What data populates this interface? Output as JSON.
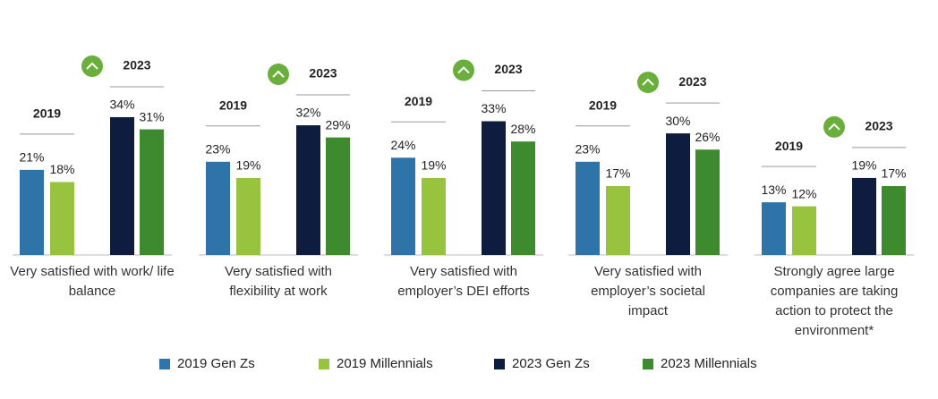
{
  "chart_data": {
    "type": "bar",
    "categories": [
      "Very satisfied with work/ life balance",
      "Very satisfied with flexibility at work",
      "Very satisfied with employer’s DEI efforts",
      "Very satisfied with employer’s societal impact",
      "Strongly agree large companies are taking action to protect the environment*"
    ],
    "period_labels": [
      "2019",
      "2023"
    ],
    "series": [
      {
        "name": "2019 Gen Zs",
        "color": "#2f74a9",
        "values": [
          21,
          23,
          24,
          23,
          13
        ],
        "value_labels": [
          "21%",
          "23%",
          "24%",
          "23%",
          "13%"
        ]
      },
      {
        "name": "2019 Millennials",
        "color": "#98c33f",
        "values": [
          18,
          19,
          19,
          17,
          12
        ],
        "value_labels": [
          "18%",
          "19%",
          "19%",
          "17%",
          "12%"
        ]
      },
      {
        "name": "2023 Gen Zs",
        "color": "#0e1c3f",
        "values": [
          34,
          32,
          33,
          30,
          19
        ],
        "value_labels": [
          "34%",
          "32%",
          "33%",
          "30%",
          "19%"
        ]
      },
      {
        "name": "2023 Millennials",
        "color": "#3e8a2e",
        "values": [
          31,
          29,
          28,
          26,
          17
        ],
        "value_labels": [
          "31%",
          "29%",
          "28%",
          "26%",
          "17%"
        ]
      }
    ]
  }
}
